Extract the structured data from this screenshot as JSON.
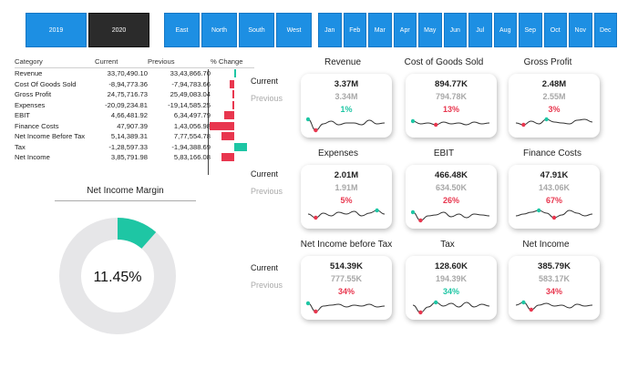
{
  "years": [
    "2019",
    "2020"
  ],
  "regions": [
    "East",
    "North",
    "South",
    "West"
  ],
  "months": [
    "Jan",
    "Feb",
    "Mar",
    "Apr",
    "May",
    "Jun",
    "Jul",
    "Aug",
    "Sep",
    "Oct",
    "Nov",
    "Dec"
  ],
  "table": {
    "headers": [
      "Category",
      "Current",
      "Previous",
      "% Change"
    ],
    "rows": [
      {
        "category": "Revenue",
        "current": "33,70,490.10",
        "previous": "33,43,866.70",
        "change": 0.8
      },
      {
        "category": "Cost Of Goods Sold",
        "current": "-8,94,773.36",
        "previous": "-7,94,783.66",
        "change": -12.6
      },
      {
        "category": "Gross Profit",
        "current": "24,75,716.73",
        "previous": "25,49,083.04",
        "change": -2.9
      },
      {
        "category": "Expenses",
        "current": "-20,09,234.81",
        "previous": "-19,14,585.25",
        "change": -4.9
      },
      {
        "category": "EBIT",
        "current": "4,66,481.92",
        "previous": "6,34,497.79",
        "change": -26.5
      },
      {
        "category": "Finance Costs",
        "current": "47,907.39",
        "previous": "1,43,056.98",
        "change": -66.5
      },
      {
        "category": "Net Income Before Tax",
        "current": "5,14,389.31",
        "previous": "7,77,554.78",
        "change": -33.8
      },
      {
        "category": "Tax",
        "current": "-1,28,597.33",
        "previous": "-1,94,388.69",
        "change": 33.8
      },
      {
        "category": "Net Income",
        "current": "3,85,791.98",
        "previous": "5,83,166.08",
        "change": -33.8
      }
    ]
  },
  "margin": {
    "title": "Net Income Margin",
    "value_label": "11.45%",
    "value": 11.45
  },
  "labels": {
    "current": "Current",
    "previous": "Previous"
  },
  "cards": [
    {
      "title": "Revenue",
      "current": "3.37M",
      "previous": "3.34M",
      "pct": "1%",
      "positive": true
    },
    {
      "title": "Cost of Goods Sold",
      "current": "894.77K",
      "previous": "794.78K",
      "pct": "13%",
      "positive": false
    },
    {
      "title": "Gross Profit",
      "current": "2.48M",
      "previous": "2.55M",
      "pct": "3%",
      "positive": false
    },
    {
      "title": "Expenses",
      "current": "2.01M",
      "previous": "1.91M",
      "pct": "5%",
      "positive": false
    },
    {
      "title": "EBIT",
      "current": "466.48K",
      "previous": "634.50K",
      "pct": "26%",
      "positive": false
    },
    {
      "title": "Finance Costs",
      "current": "47.91K",
      "previous": "143.06K",
      "pct": "67%",
      "positive": false
    },
    {
      "title": "Net Income before Tax",
      "current": "514.39K",
      "previous": "777.55K",
      "pct": "34%",
      "positive": false
    },
    {
      "title": "Tax",
      "current": "128.60K",
      "previous": "194.39K",
      "pct": "34%",
      "positive": true
    },
    {
      "title": "Net Income",
      "current": "385.79K",
      "previous": "583.17K",
      "pct": "34%",
      "positive": false
    }
  ],
  "colors": {
    "positive": "#1ec6a4",
    "negative": "#e8364e",
    "slicer": "#1d8fe3",
    "slicer_selected": "#2b2b2b",
    "donut_track": "#e6e6e8"
  }
}
